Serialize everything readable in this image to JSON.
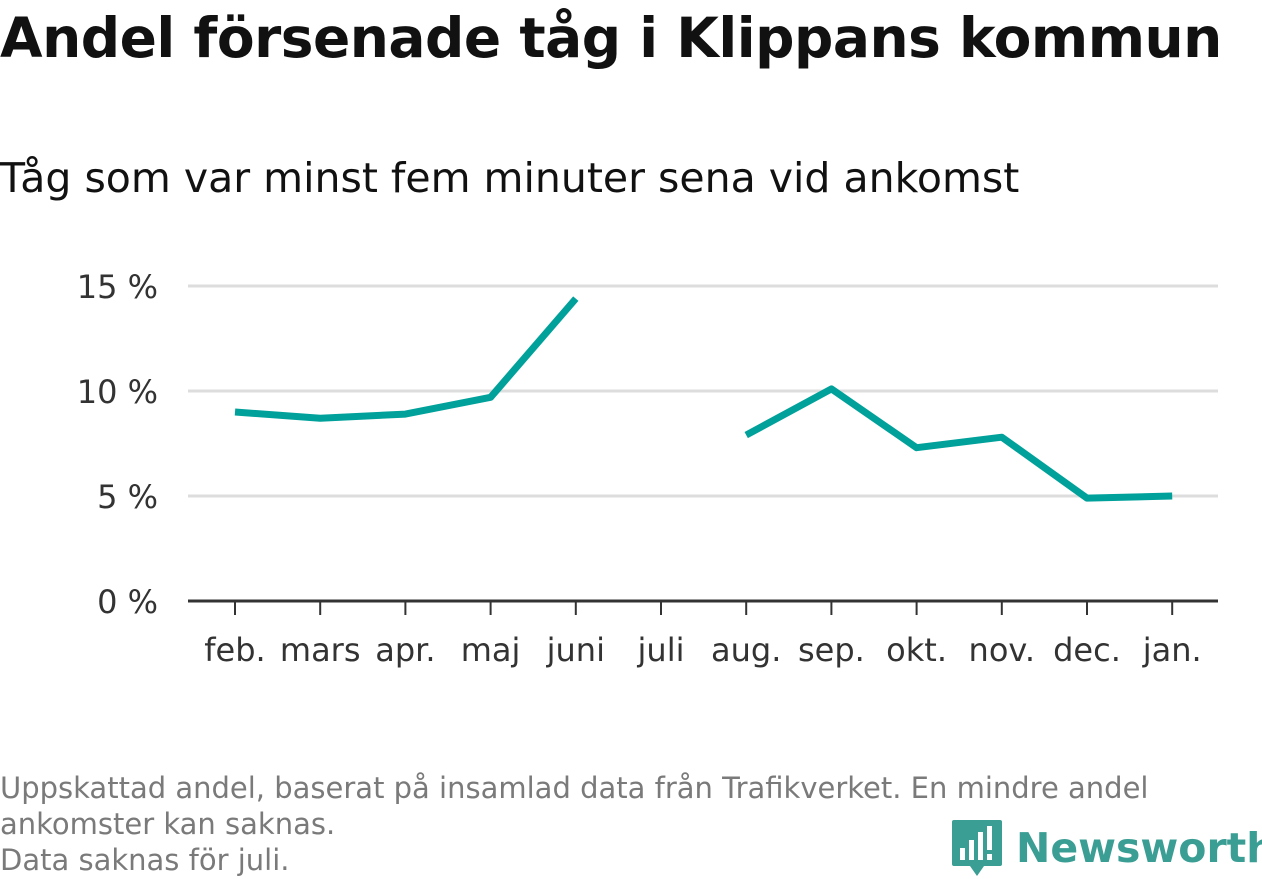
{
  "title": "Andel försenade tåg i Klippans kommun",
  "subtitle": "Tåg som var minst fem minuter sena vid ankomst",
  "footnote": {
    "line1": "Uppskattad andel, baserat på insamlad data från Trafikverket. En mindre andel",
    "line2": "ankomster kan saknas.",
    "line3": "Data saknas för juli."
  },
  "brand": {
    "name": "Newsworthy",
    "icon": "bar-chart-speech-bubble-icon",
    "color": "#3a9e94"
  },
  "colors": {
    "line": "#00a19a",
    "grid": "#dddddd",
    "axis": "#333333"
  },
  "chart_data": {
    "type": "line",
    "categories": [
      "feb.",
      "mars",
      "apr.",
      "maj",
      "juni",
      "juli",
      "aug.",
      "sep.",
      "okt.",
      "nov.",
      "dec.",
      "jan."
    ],
    "series": [
      {
        "values": [
          9.0,
          8.7,
          8.9,
          9.7,
          14.4,
          null,
          7.9,
          10.1,
          7.3,
          7.8,
          4.9,
          5.0
        ]
      }
    ],
    "y_ticks": [
      {
        "value": 0,
        "label": "0 %"
      },
      {
        "value": 5,
        "label": "5 %"
      },
      {
        "value": 10,
        "label": "10 %"
      },
      {
        "value": 15,
        "label": "15 %"
      }
    ],
    "ylim": [
      0,
      15
    ],
    "grid": true,
    "xlabel": "",
    "ylabel": ""
  }
}
